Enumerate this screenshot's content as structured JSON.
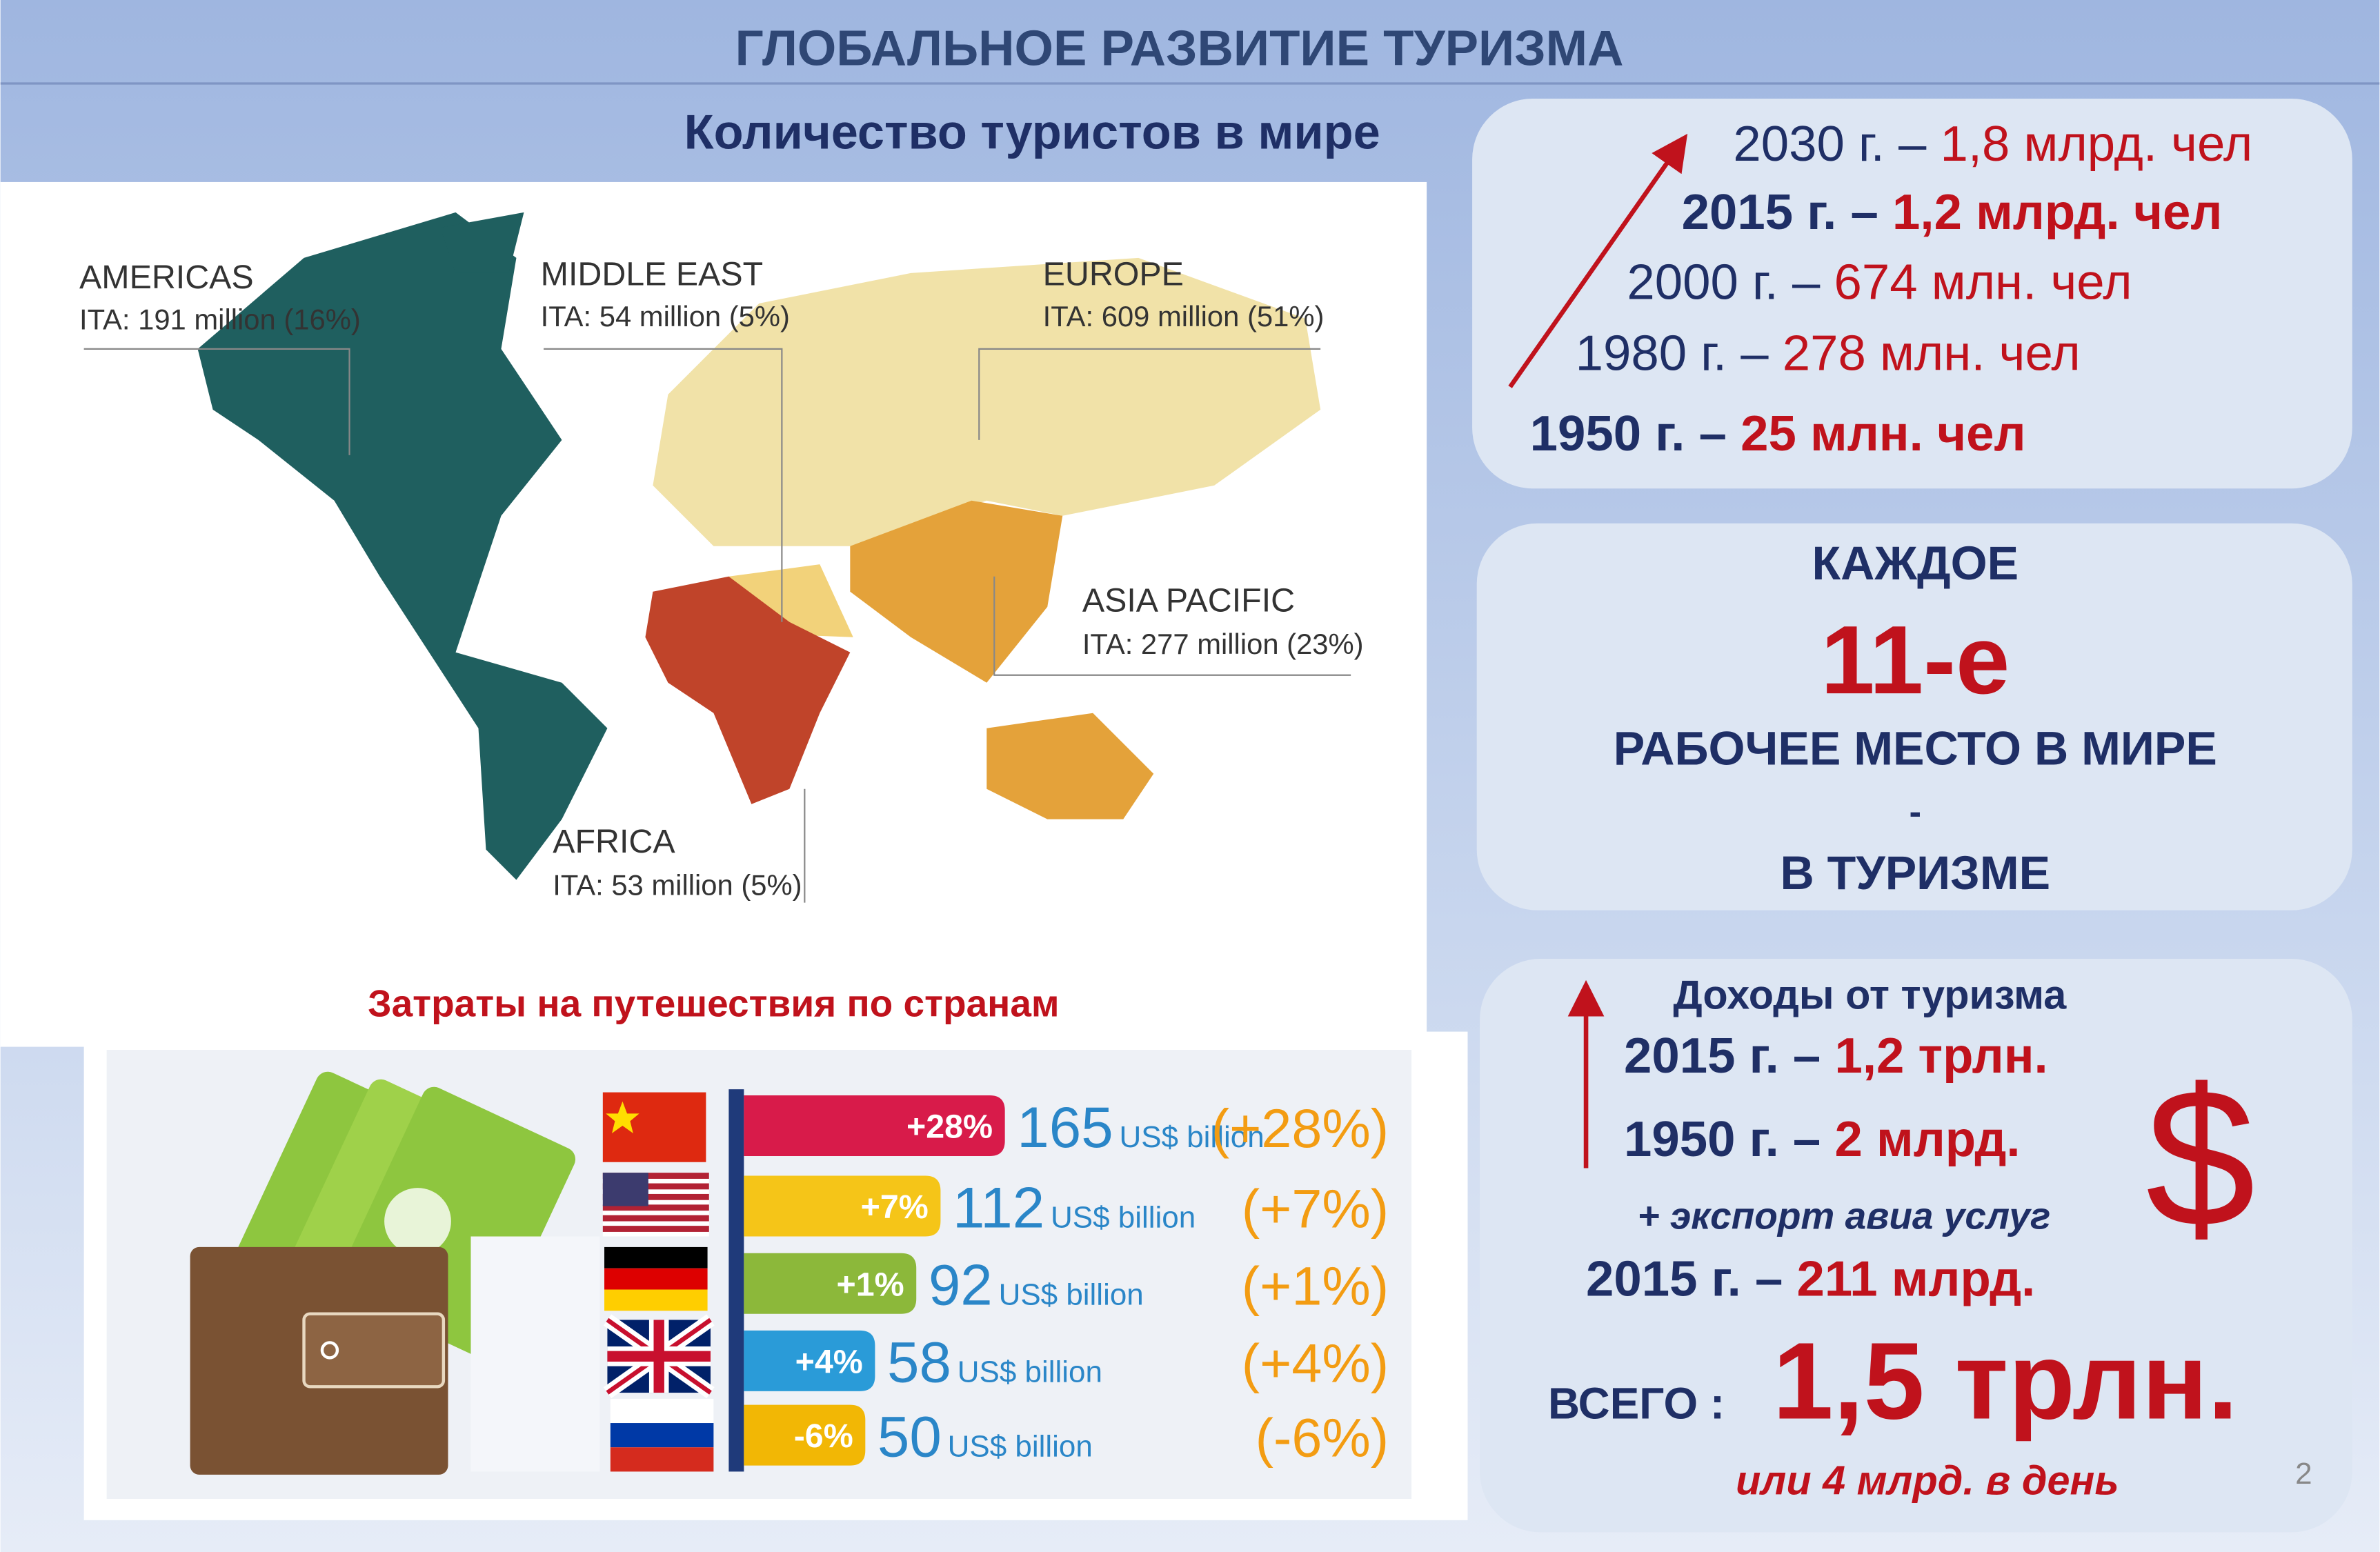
{
  "header": {
    "title": "ГЛОБАЛЬНОЕ РАЗВИТИЕ ТУРИЗМА",
    "subtitle": "Количество туристов в мире"
  },
  "map": {
    "regions": [
      {
        "name": "AMERICAS",
        "label": "ITA: 191 million (16%)"
      },
      {
        "name": "MIDDLE EAST",
        "label": "ITA: 54 million (5%)"
      },
      {
        "name": "EUROPE",
        "label": "ITA: 609 million (51%)"
      },
      {
        "name": "ASIA PACIFIC",
        "label": "ITA: 277 million (23%)"
      },
      {
        "name": "AFRICA",
        "label": "ITA: 53 million (5%)"
      }
    ]
  },
  "growth": [
    {
      "year": "2030 г. –",
      "value": "1,8 млрд. чел"
    },
    {
      "year": "2015 г. –",
      "value": "1,2 млрд. чел"
    },
    {
      "year": "2000 г. –",
      "value": "674 млн. чел"
    },
    {
      "year": "1980 г. –",
      "value": "278 млн. чел"
    },
    {
      "year": "1950 г. –",
      "value": "25 млн. чел"
    }
  ],
  "jobs": {
    "line1": "КАЖДОЕ",
    "highlight": "11-е",
    "line2": "РАБОЧЕЕ МЕСТО В МИРЕ",
    "dash": "-",
    "line3": "В ТУРИЗМЕ"
  },
  "income": {
    "title": "Доходы от туризма",
    "rows": [
      {
        "year": "2015 г. –",
        "value": "1,2 трлн."
      },
      {
        "year": "1950 г. –",
        "value": "2 млрд."
      }
    ],
    "export_title": "+ экспорт  авиа услуг",
    "export_row": {
      "year": "2015 г. –",
      "value": "211 млрд."
    },
    "total_label": "ВСЕГО :",
    "total_value": "1,5 трлн.",
    "per_day": "или 4 млрд. в день",
    "symbol": "$"
  },
  "spending": {
    "title": "Затраты на путешествия по странам",
    "unit": "US$ billion",
    "rows": [
      {
        "change": "+28%",
        "value": 165,
        "change_paren": "(+28%)"
      },
      {
        "change": "+7%",
        "value": 112,
        "change_paren": "(+7%)"
      },
      {
        "change": "+1%",
        "value": 92,
        "change_paren": "(+1%)"
      },
      {
        "change": "+4%",
        "value": 58,
        "change_paren": "(+4%)"
      },
      {
        "change": "-6%",
        "value": 50,
        "change_paren": "(-6%)"
      }
    ]
  },
  "slide_number": "2"
}
